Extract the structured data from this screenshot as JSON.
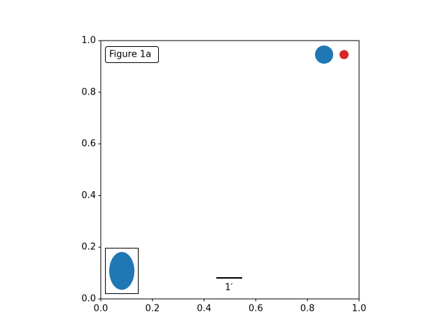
{
  "chart_data": {
    "type": "scatter",
    "xlim": [
      0,
      1
    ],
    "ylim": [
      0,
      1
    ],
    "xticks": [
      {
        "value": 0,
        "label": "0.0"
      },
      {
        "value": 0.2,
        "label": "0.2"
      },
      {
        "value": 0.4,
        "label": "0.4"
      },
      {
        "value": 0.6,
        "label": "0.6"
      },
      {
        "value": 0.8,
        "label": "0.8"
      },
      {
        "value": 1,
        "label": "1.0"
      }
    ],
    "yticks": [
      {
        "value": 0,
        "label": "0.0"
      },
      {
        "value": 0.2,
        "label": "0.2"
      },
      {
        "value": 0.4,
        "label": "0.4"
      },
      {
        "value": 0.6,
        "label": "0.6"
      },
      {
        "value": 0.8,
        "label": "0.8"
      },
      {
        "value": 1,
        "label": "1.0"
      }
    ],
    "grid": false,
    "annotations": {
      "text_box": "Figure 1a",
      "size_bar_label": "1′"
    }
  }
}
